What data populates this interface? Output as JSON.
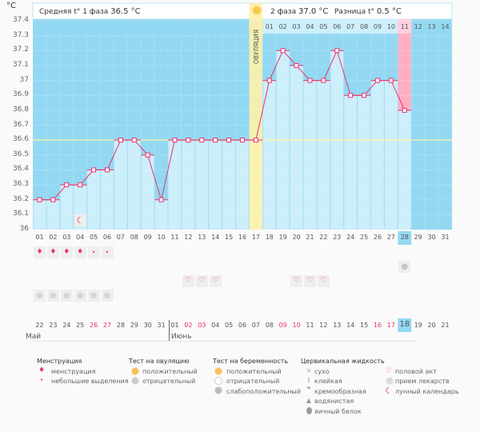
{
  "header": {
    "unit": "°C",
    "phase1_label": "Средняя t° 1 фаза",
    "phase1_value": "36.5 °C",
    "phase2_label": "2 фаза",
    "phase2_value": "37.0 °C",
    "diff_label": "Разница t°",
    "diff_value": "0.5 °C",
    "ovulation_label": "ОВУЛЯЦИЯ"
  },
  "colors": {
    "bg_blue": "#93d8f2",
    "bar_light": "#cdeefb",
    "line": "#e8336d",
    "ovulation": "#fff2a8",
    "highlight": "#ffaec4",
    "today": "#93d8f2"
  },
  "phase2_days": [
    "01",
    "02",
    "03",
    "04",
    "05",
    "06",
    "07",
    "08",
    "09",
    "10",
    "11",
    "12",
    "13",
    "14"
  ],
  "months": {
    "first": "Май",
    "second": "Июнь"
  },
  "calendar_dates": [
    "22",
    "23",
    "24",
    "25",
    "26",
    "27",
    "28",
    "29",
    "30",
    "31",
    "01",
    "02",
    "03",
    "04",
    "05",
    "06",
    "07",
    "08",
    "09",
    "10",
    "11",
    "12",
    "13",
    "14",
    "15",
    "16",
    "17",
    "18",
    "19",
    "20",
    "21"
  ],
  "red_dates_idx": [
    4,
    5,
    11,
    12,
    18,
    19,
    25,
    26
  ],
  "chart_data": {
    "type": "line",
    "title": "",
    "ylabel": "°C",
    "ylim": [
      36,
      37.4
    ],
    "yticks": [
      "36",
      "36.1",
      "36.2",
      "36.3",
      "36.4",
      "36.5",
      "36.6",
      "36.7",
      "36.8",
      "36.9",
      "37",
      "37.1",
      "37.2",
      "37.3",
      "37.4"
    ],
    "categories": [
      "01",
      "02",
      "03",
      "04",
      "05",
      "06",
      "07",
      "08",
      "09",
      "10",
      "11",
      "12",
      "13",
      "14",
      "15",
      "16",
      "17",
      "18",
      "19",
      "20",
      "21",
      "22",
      "23",
      "24",
      "25",
      "26",
      "27",
      "28",
      "29",
      "30",
      "31"
    ],
    "values": [
      36.2,
      36.2,
      36.3,
      36.3,
      36.4,
      36.4,
      36.6,
      36.6,
      36.5,
      36.2,
      36.6,
      36.6,
      36.6,
      36.6,
      36.6,
      36.6,
      36.6,
      37.0,
      37.2,
      37.1,
      37.0,
      37.0,
      37.2,
      36.9,
      36.9,
      37.0,
      37.0,
      36.8,
      null,
      null,
      null
    ],
    "coverline": 36.6,
    "ovulation_day": "17",
    "highlight_day": "28",
    "today_day": "28"
  },
  "markers": {
    "menstruation_days": [
      1,
      2,
      3,
      4
    ],
    "spotting_days": [
      5,
      6
    ],
    "moon_day": 4,
    "sex_days": [
      12,
      13,
      14,
      20,
      21,
      22
    ],
    "medicine_days": [
      1,
      2,
      3,
      4,
      5,
      6
    ],
    "pregnancy_weak_day": 28
  },
  "legend": {
    "menstruation": {
      "title": "Менструация",
      "items": [
        "менструация",
        "небольшие выделения"
      ]
    },
    "ovulation_test": {
      "title": "Тест на овуляцию",
      "items": [
        "положительный",
        "отрицательный"
      ]
    },
    "pregnancy_test": {
      "title": "Тест на беременность",
      "items": [
        "положительный",
        "отрицательный",
        "слабоположительный"
      ]
    },
    "cervical": {
      "title": "Цервикальная жидкость",
      "items": [
        "сухо",
        "клейкая",
        "кремообразная",
        "водянистая",
        "яичный белок"
      ]
    },
    "other": {
      "items": [
        "половой акт",
        "прием лекарств",
        "лунный календарь"
      ]
    }
  }
}
